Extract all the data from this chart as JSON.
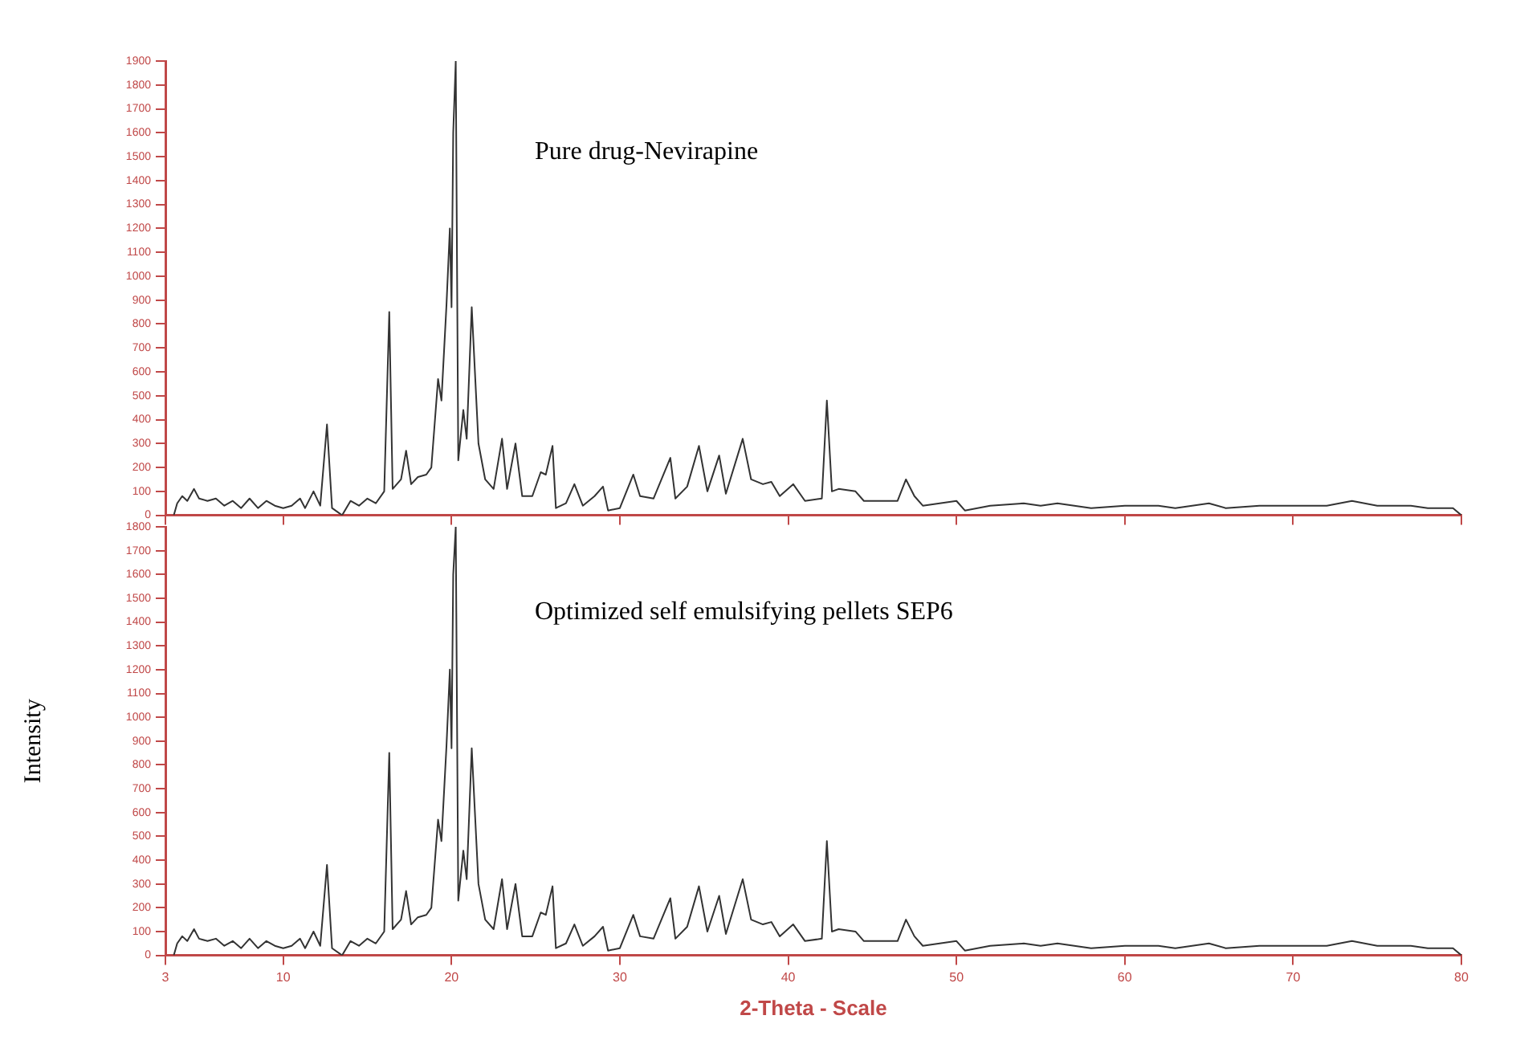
{
  "chart_data": [
    {
      "type": "line",
      "annotations": [
        "Pure drug-Nevirapine"
      ],
      "x": [
        3.5,
        3.7,
        4.0,
        4.3,
        4.7,
        5.0,
        5.5,
        6.0,
        6.5,
        7.0,
        7.5,
        8.0,
        8.5,
        9.0,
        9.5,
        10.0,
        10.5,
        11.0,
        11.3,
        11.8,
        12.2,
        12.6,
        12.9,
        13.5,
        14.0,
        14.5,
        15.0,
        15.5,
        16.0,
        16.3,
        16.5,
        17.0,
        17.3,
        17.6,
        18.0,
        18.5,
        18.8,
        19.2,
        19.4,
        19.7,
        19.9,
        20.0,
        20.1,
        20.25,
        20.4,
        20.7,
        20.9,
        21.2,
        21.6,
        22.0,
        22.5,
        23.0,
        23.3,
        23.8,
        24.2,
        24.8,
        25.3,
        25.6,
        26.0,
        26.2,
        26.8,
        27.3,
        27.8,
        28.5,
        29.0,
        29.3,
        30.0,
        30.8,
        31.2,
        32.0,
        33.0,
        33.3,
        34.0,
        34.7,
        35.2,
        35.9,
        36.3,
        37.3,
        37.8,
        38.5,
        39.0,
        39.5,
        40.3,
        41.0,
        42.0,
        42.3,
        42.6,
        43.0,
        44.0,
        44.5,
        45.5,
        46.5,
        47.0,
        47.5,
        48.0,
        49.0,
        50.0,
        50.5,
        52.0,
        54.0,
        55.0,
        56.0,
        58.0,
        60.0,
        62.0,
        63.0,
        65.0,
        66.0,
        68.0,
        70.0,
        72.0,
        73.5,
        75.0,
        77.0,
        78.0,
        79.5,
        80.0
      ],
      "series": [
        {
          "color": "#333333",
          "values": [
            0,
            50,
            80,
            60,
            110,
            70,
            60,
            70,
            40,
            60,
            30,
            70,
            30,
            60,
            40,
            30,
            40,
            70,
            30,
            100,
            40,
            380,
            30,
            0,
            60,
            40,
            70,
            50,
            100,
            850,
            110,
            150,
            270,
            130,
            160,
            170,
            200,
            570,
            480,
            880,
            1200,
            870,
            1600,
            1900,
            230,
            440,
            320,
            870,
            300,
            150,
            110,
            320,
            110,
            300,
            80,
            80,
            180,
            170,
            290,
            30,
            50,
            130,
            40,
            80,
            120,
            20,
            30,
            170,
            80,
            70,
            240,
            70,
            120,
            290,
            100,
            250,
            90,
            320,
            150,
            130,
            140,
            80,
            130,
            60,
            70,
            480,
            100,
            110,
            100,
            60,
            60,
            60,
            150,
            80,
            40,
            50,
            60,
            20,
            40,
            50,
            40,
            50,
            30,
            40,
            40,
            30,
            50,
            30,
            40,
            40,
            40,
            60,
            40,
            40,
            30,
            30,
            0
          ]
        }
      ],
      "xlim": [
        3,
        80
      ],
      "xticks": [
        3,
        10,
        20,
        30,
        40,
        50,
        60,
        70,
        80
      ],
      "ylim": [
        0,
        1900
      ],
      "yticks": [
        0,
        100,
        200,
        300,
        400,
        500,
        600,
        700,
        800,
        900,
        1000,
        1100,
        1200,
        1300,
        1400,
        1500,
        1600,
        1700,
        1800,
        1900
      ],
      "tick_labels": "y",
      "grid": false,
      "legend": false
    },
    {
      "type": "line",
      "annotations": [
        "Optimized self emulsifying pellets SEP6"
      ],
      "xlabel": "2-Theta - Scale",
      "ylabel": "Intensity",
      "x": [
        3.5,
        3.7,
        4.0,
        4.3,
        4.7,
        5.0,
        5.5,
        6.0,
        6.5,
        7.0,
        7.5,
        8.0,
        8.5,
        9.0,
        9.5,
        10.0,
        10.5,
        11.0,
        11.3,
        11.8,
        12.2,
        12.6,
        12.9,
        13.5,
        14.0,
        14.5,
        15.0,
        15.5,
        16.0,
        16.3,
        16.5,
        17.0,
        17.3,
        17.6,
        18.0,
        18.5,
        18.8,
        19.2,
        19.4,
        19.7,
        19.9,
        20.0,
        20.1,
        20.25,
        20.4,
        20.7,
        20.9,
        21.2,
        21.6,
        22.0,
        22.5,
        23.0,
        23.3,
        23.8,
        24.2,
        24.8,
        25.3,
        25.6,
        26.0,
        26.2,
        26.8,
        27.3,
        27.8,
        28.5,
        29.0,
        29.3,
        30.0,
        30.8,
        31.2,
        32.0,
        33.0,
        33.3,
        34.0,
        34.7,
        35.2,
        35.9,
        36.3,
        37.3,
        37.8,
        38.5,
        39.0,
        39.5,
        40.3,
        41.0,
        42.0,
        42.3,
        42.6,
        43.0,
        44.0,
        44.5,
        45.5,
        46.5,
        47.0,
        47.5,
        48.0,
        49.0,
        50.0,
        50.5,
        52.0,
        54.0,
        55.0,
        56.0,
        58.0,
        60.0,
        62.0,
        63.0,
        65.0,
        66.0,
        68.0,
        70.0,
        72.0,
        73.5,
        75.0,
        77.0,
        78.0,
        79.5,
        80.0
      ],
      "series": [
        {
          "color": "#333333",
          "values": [
            0,
            50,
            80,
            60,
            110,
            70,
            60,
            70,
            40,
            60,
            30,
            70,
            30,
            60,
            40,
            30,
            40,
            70,
            30,
            100,
            40,
            380,
            30,
            0,
            60,
            40,
            70,
            50,
            100,
            850,
            110,
            150,
            270,
            130,
            160,
            170,
            200,
            570,
            480,
            880,
            1200,
            870,
            1600,
            1800,
            230,
            440,
            320,
            870,
            300,
            150,
            110,
            320,
            110,
            300,
            80,
            80,
            180,
            170,
            290,
            30,
            50,
            130,
            40,
            80,
            120,
            20,
            30,
            170,
            80,
            70,
            240,
            70,
            120,
            290,
            100,
            250,
            90,
            320,
            150,
            130,
            140,
            80,
            130,
            60,
            70,
            480,
            100,
            110,
            100,
            60,
            60,
            60,
            150,
            80,
            40,
            50,
            60,
            20,
            40,
            50,
            40,
            50,
            30,
            40,
            40,
            30,
            50,
            30,
            40,
            40,
            40,
            60,
            40,
            40,
            30,
            30,
            0
          ]
        }
      ],
      "xlim": [
        3,
        80
      ],
      "xticks": [
        3,
        10,
        20,
        30,
        40,
        50,
        60,
        70,
        80
      ],
      "ylim": [
        0,
        1800
      ],
      "yticks": [
        0,
        100,
        200,
        300,
        400,
        500,
        600,
        700,
        800,
        900,
        1000,
        1100,
        1200,
        1300,
        1400,
        1500,
        1600,
        1700,
        1800
      ],
      "grid": false,
      "legend": false
    }
  ]
}
